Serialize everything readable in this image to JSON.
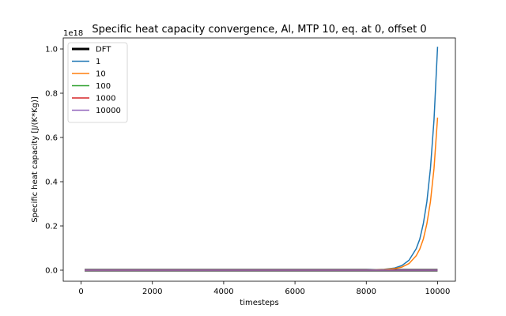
{
  "chart_data": {
    "type": "line",
    "title": "Specific heat capacity convergence, Al, MTP 10, eq. at 0, offset 0",
    "xlabel": "timesteps",
    "ylabel": "Specific heat capacity [J/(K*Kg)]",
    "y_offset_label": "1e18",
    "xlim": [
      -500,
      10500
    ],
    "ylim": [
      -0.05,
      1.05
    ],
    "y_units_note": "values in units of 1e18",
    "xticks": [
      0,
      2000,
      4000,
      6000,
      8000,
      10000
    ],
    "xtick_labels": [
      "0",
      "2000",
      "4000",
      "6000",
      "8000",
      "10000"
    ],
    "yticks": [
      0.0,
      0.2,
      0.4,
      0.6,
      0.8,
      1.0
    ],
    "ytick_labels": [
      "0.0",
      "0.2",
      "0.4",
      "0.6",
      "0.8",
      "1.0"
    ],
    "grid": false,
    "legend": "top-left",
    "series": [
      {
        "name": "DFT",
        "color": "#000000",
        "width": 3,
        "x": [
          100,
          10000
        ],
        "y": [
          0.0,
          0.0
        ]
      },
      {
        "name": "1",
        "color": "#1f77b4",
        "width": 1.5,
        "x": [
          100,
          8000,
          8500,
          8800,
          9000,
          9200,
          9400,
          9500,
          9600,
          9700,
          9800,
          9900,
          10000
        ],
        "y": [
          0.0,
          0.001,
          0.004,
          0.01,
          0.021,
          0.045,
          0.097,
          0.14,
          0.21,
          0.31,
          0.46,
          0.68,
          1.01
        ]
      },
      {
        "name": "10",
        "color": "#ff7f0e",
        "width": 1.5,
        "x": [
          100,
          8000,
          8500,
          8800,
          9000,
          9200,
          9400,
          9500,
          9600,
          9700,
          9800,
          9900,
          10000
        ],
        "y": [
          0.0,
          0.0006,
          0.0026,
          0.007,
          0.014,
          0.03,
          0.065,
          0.095,
          0.14,
          0.21,
          0.31,
          0.46,
          0.69
        ]
      },
      {
        "name": "100",
        "color": "#2ca02c",
        "width": 1.5,
        "x": [
          100,
          10000
        ],
        "y": [
          0.0,
          0.0
        ]
      },
      {
        "name": "1000",
        "color": "#d62728",
        "width": 1.5,
        "x": [
          100,
          10000
        ],
        "y": [
          0.0,
          0.0
        ]
      },
      {
        "name": "10000",
        "color": "#9467bd",
        "width": 1.5,
        "x": [
          100,
          10000
        ],
        "y": [
          0.0,
          0.0
        ]
      }
    ]
  }
}
